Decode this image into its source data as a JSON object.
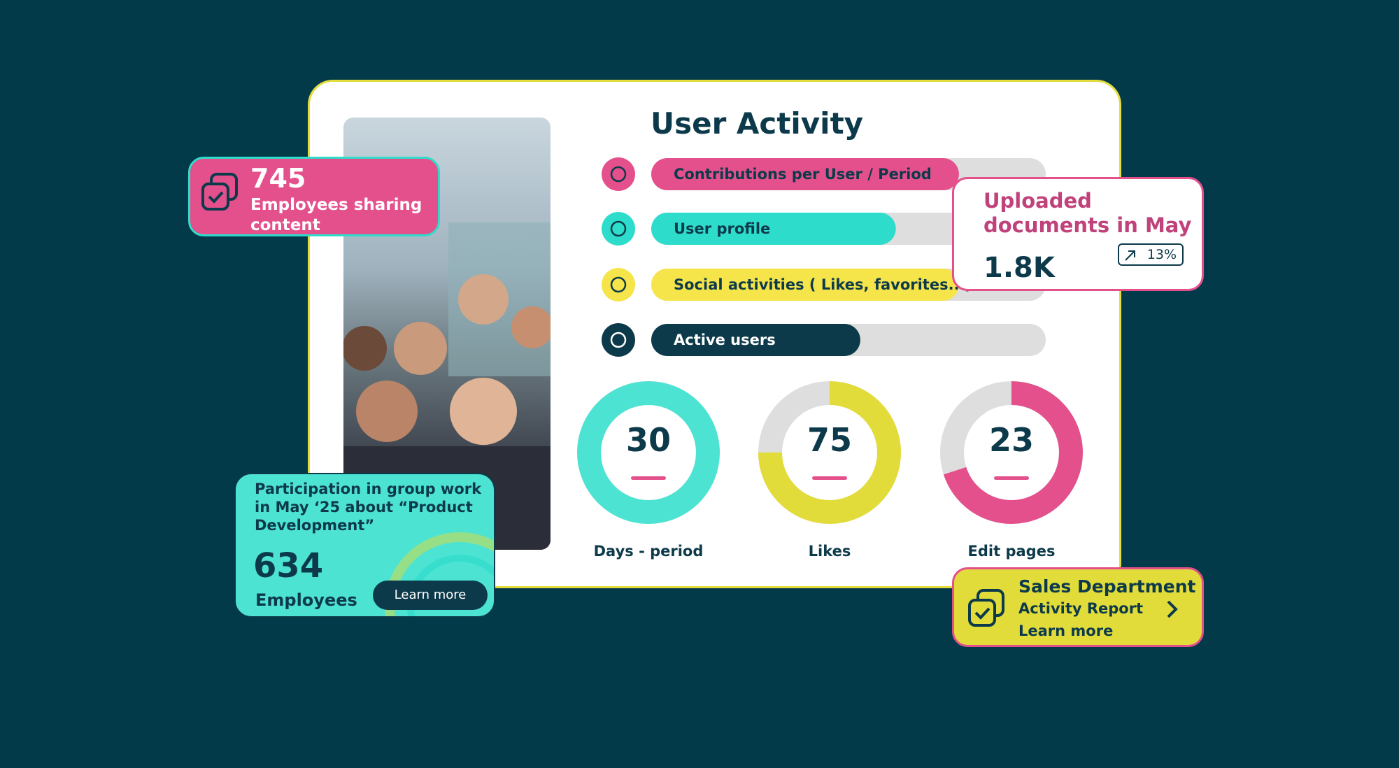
{
  "user_activity": {
    "title": "User Activity",
    "bars": [
      {
        "label": "Contributions per User / Period",
        "progress": 78,
        "color": "#e4508c"
      },
      {
        "label": "User profile",
        "progress": 62,
        "color": "#2edccb"
      },
      {
        "label": "Social activities ( Likes, favorites...)",
        "progress": 78,
        "color": "#f5e54a"
      },
      {
        "label": "Active users",
        "progress": 53,
        "color": "#0d3a4a"
      }
    ],
    "donuts": [
      {
        "value": "30",
        "label": "Days - period",
        "fill": 100,
        "color": "#4de3d3"
      },
      {
        "value": "75",
        "label": "Likes",
        "fill": 75,
        "color": "#e2dc3a"
      },
      {
        "value": "23",
        "label": "Edit pages",
        "fill": 70,
        "color": "#e4508c"
      }
    ]
  },
  "sharing_card": {
    "value": "745",
    "text": "Employees sharing content"
  },
  "uploads_card": {
    "title": "Uploaded documents in May",
    "value": "1.8K",
    "change": "13%"
  },
  "participation_card": {
    "text": "Participation in group work in May ‘25 about “Product Development”",
    "value": "634",
    "unit": "Employees",
    "button": "Learn more"
  },
  "sales_card": {
    "title": "Sales Department",
    "subtitle": "Activity Report",
    "link": "Learn more"
  }
}
